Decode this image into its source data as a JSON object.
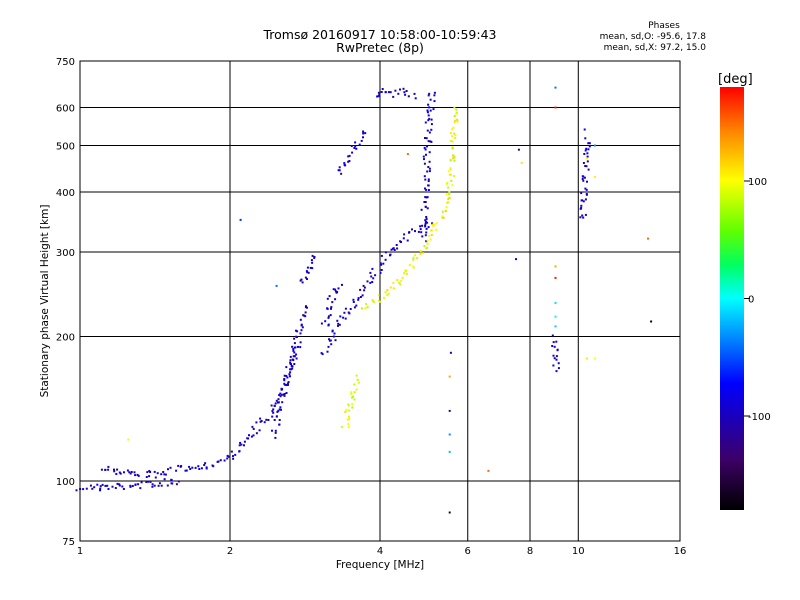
{
  "chart_data": {
    "type": "scatter",
    "title": "Tromsø 20160917 10:58:00-10:59:43",
    "subtitle": "RwPretec (8p)",
    "xlabel": "Frequency [MHz]",
    "ylabel": "Stationary phase Virtual Height [km]",
    "x_scale": "log",
    "y_scale": "log",
    "xlim": [
      1,
      16
    ],
    "ylim": [
      75,
      750
    ],
    "x_ticks": [
      1,
      2,
      4,
      6,
      8,
      10,
      16
    ],
    "y_ticks": [
      75,
      100,
      200,
      300,
      400,
      500,
      600,
      750
    ],
    "colorbar": {
      "label": "[deg]",
      "range": [
        -180,
        180
      ],
      "ticks": [
        100,
        0,
        -100
      ]
    },
    "stats": {
      "heading": "Phases",
      "line_o": "mean, sd,O: -95.6, 17.8",
      "line_x": "mean, sd,X: 97.2, 15.0"
    },
    "series": [
      {
        "name": "O",
        "phase": -95.6,
        "traces": [
          {
            "x": [
              1.0,
              1.15,
              1.3,
              1.45,
              1.6
            ],
            "y": [
              97,
              97,
              98,
              99,
              100
            ]
          },
          {
            "x": [
              1.1,
              1.25,
              1.4,
              1.6,
              1.8,
              1.95,
              2.02
            ],
            "y": [
              107,
              104,
              103,
              106,
              108,
              110,
              112
            ]
          },
          {
            "x": [
              2.0,
              2.1,
              2.2,
              2.35,
              2.5,
              2.62,
              2.72,
              2.78,
              2.83
            ],
            "y": [
              112,
              118,
              126,
              134,
              145,
              170,
              195,
              215,
              235
            ]
          },
          {
            "x": [
              2.45,
              2.55,
              2.65,
              2.75
            ],
            "y": [
              125,
              150,
              175,
              195
            ]
          },
          {
            "x": [
              2.8,
              2.88,
              2.96
            ],
            "y": [
              255,
              280,
              300
            ]
          },
          {
            "x": [
              3.1,
              3.2,
              3.3,
              3.45,
              3.6,
              3.75,
              3.9,
              4.05,
              4.2,
              4.35,
              4.5,
              4.65,
              4.8,
              4.95,
              5.1
            ],
            "y": [
              185,
              195,
              210,
              225,
              240,
              255,
              270,
              285,
              300,
              312,
              322,
              330,
              336,
              342,
              348
            ]
          },
          {
            "x": [
              3.1,
              3.2,
              3.35
            ],
            "y": [
              210,
              240,
              260
            ]
          },
          {
            "x": [
              3.3,
              3.45,
              3.6,
              3.75
            ],
            "y": [
              440,
              470,
              500,
              540
            ]
          },
          {
            "x": [
              3.9,
              4.1,
              4.3,
              4.5,
              4.7
            ],
            "y": [
              630,
              650,
              640,
              648,
              625
            ]
          },
          {
            "x": [
              4.9,
              4.95,
              5.0,
              5.05,
              5.1
            ],
            "y": [
              320,
              420,
              520,
              600,
              660
            ]
          },
          {
            "x": [
              5.55
            ],
            "y": [
              185
            ]
          },
          {
            "x": [
              9.0,
              9.0
            ],
            "y": [
              170,
              200
            ]
          },
          {
            "x": [
              10.2,
              10.3,
              10.4
            ],
            "y": [
              350,
              420,
              520
            ]
          }
        ]
      },
      {
        "name": "X",
        "phase": 97.2,
        "traces": [
          {
            "x": [
              3.7,
              3.85,
              4.0,
              4.15,
              4.3,
              4.45,
              4.6,
              4.75,
              4.9,
              5.05,
              5.2,
              5.35,
              5.45,
              5.55,
              5.62,
              5.68
            ],
            "y": [
              230,
              235,
              240,
              248,
              258,
              268,
              280,
              295,
              310,
              325,
              340,
              360,
              390,
              430,
              520,
              610
            ]
          },
          {
            "x": [
              3.4,
              3.5,
              3.6
            ],
            "y": [
              130,
              145,
              165
            ]
          },
          {
            "x": [
              1.25
            ],
            "y": [
              122
            ]
          }
        ]
      },
      {
        "name": "scattered",
        "points": [
          {
            "x": 2.1,
            "y": 350,
            "phase": -60
          },
          {
            "x": 2.48,
            "y": 255,
            "phase": -40
          },
          {
            "x": 4.55,
            "y": 480,
            "phase": 150
          },
          {
            "x": 5.52,
            "y": 165,
            "phase": 130
          },
          {
            "x": 5.52,
            "y": 140,
            "phase": -120
          },
          {
            "x": 5.52,
            "y": 125,
            "phase": -30
          },
          {
            "x": 5.52,
            "y": 115,
            "phase": -20
          },
          {
            "x": 5.52,
            "y": 86,
            "phase": -160
          },
          {
            "x": 6.6,
            "y": 105,
            "phase": 150
          },
          {
            "x": 7.5,
            "y": 290,
            "phase": -70
          },
          {
            "x": 7.6,
            "y": 490,
            "phase": -130
          },
          {
            "x": 7.7,
            "y": 460,
            "phase": 110
          },
          {
            "x": 9.0,
            "y": 600,
            "phase": 170
          },
          {
            "x": 9.0,
            "y": 660,
            "phase": -40
          },
          {
            "x": 9.0,
            "y": 280,
            "phase": 130
          },
          {
            "x": 9.0,
            "y": 265,
            "phase": 175
          },
          {
            "x": 9.0,
            "y": 235,
            "phase": -10
          },
          {
            "x": 9.0,
            "y": 220,
            "phase": -5
          },
          {
            "x": 9.0,
            "y": 210,
            "phase": -15
          },
          {
            "x": 10.3,
            "y": 540,
            "phase": -80
          },
          {
            "x": 10.4,
            "y": 470,
            "phase": 100
          },
          {
            "x": 10.4,
            "y": 180,
            "phase": 110
          },
          {
            "x": 10.8,
            "y": 500,
            "phase": -30
          },
          {
            "x": 10.8,
            "y": 430,
            "phase": 105
          },
          {
            "x": 10.8,
            "y": 180,
            "phase": 100
          },
          {
            "x": 13.8,
            "y": 320,
            "phase": 150
          },
          {
            "x": 14.0,
            "y": 215,
            "phase": -170
          }
        ]
      }
    ]
  }
}
